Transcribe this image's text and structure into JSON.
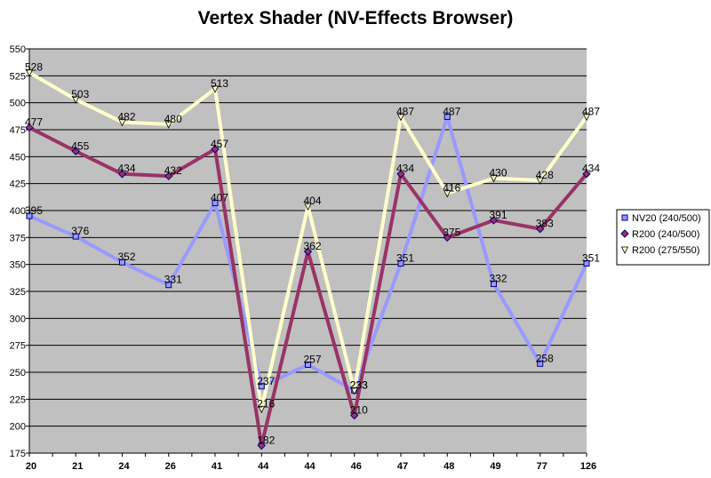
{
  "chart_data": {
    "type": "line",
    "title": "Vertex Shader (NV-Effects Browser)",
    "xlabel": "",
    "ylabel": "",
    "categories": [
      "20",
      "21",
      "24",
      "26",
      "41",
      "44",
      "44",
      "46",
      "47",
      "48",
      "49",
      "77",
      "126"
    ],
    "ylim": [
      175,
      550
    ],
    "yticks": [
      175,
      200,
      225,
      250,
      275,
      300,
      325,
      350,
      375,
      400,
      425,
      450,
      475,
      500,
      525,
      550
    ],
    "grid": true,
    "legend_position": "right",
    "series": [
      {
        "name": "NV20 (240/500)",
        "values": [
          395,
          376,
          352,
          331,
          407,
          237,
          257,
          233,
          351,
          487,
          332,
          258,
          351
        ],
        "color": "#9999ff",
        "marker": "square"
      },
      {
        "name": "R200 (240/500)",
        "values": [
          477,
          455,
          434,
          432,
          457,
          182,
          362,
          210,
          434,
          375,
          391,
          383,
          434
        ],
        "color": "#993366",
        "marker": "diamond"
      },
      {
        "name": "R200 (275/550)",
        "values": [
          528,
          503,
          482,
          480,
          513,
          216,
          404,
          233,
          487,
          416,
          430,
          428,
          487
        ],
        "color": "#ffffcc",
        "marker": "triangle-down"
      }
    ]
  }
}
